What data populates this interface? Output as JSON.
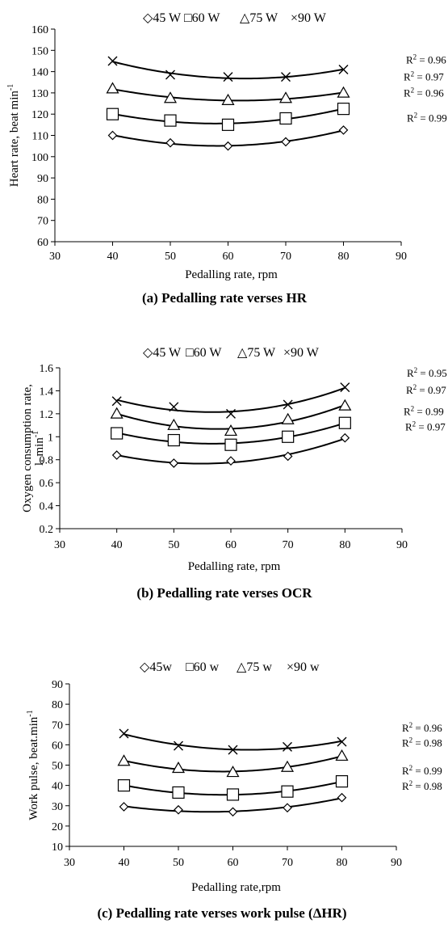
{
  "chart_data": [
    {
      "type": "scatter",
      "caption": "(a) Pedalling rate verses HR",
      "xlabel": "Pedalling rate, rpm",
      "ylabel": "Heart rate, beat min",
      "ylabel_sup": "-1",
      "xlim": [
        30,
        90
      ],
      "xticks": [
        30,
        40,
        50,
        60,
        70,
        80,
        90
      ],
      "ylim": [
        60,
        160
      ],
      "yticks": [
        60,
        70,
        80,
        90,
        100,
        110,
        120,
        130,
        140,
        150,
        160
      ],
      "legend": [
        "45 W",
        "60 W",
        "75 W",
        "90 W"
      ],
      "legend_position": "top",
      "x": [
        40,
        50,
        60,
        70,
        80
      ],
      "series": [
        {
          "name": "45 W",
          "marker": "diamond",
          "values": [
            110,
            106.5,
            105,
            107,
            112.5
          ],
          "r2": "0.99"
        },
        {
          "name": "60 W",
          "marker": "square",
          "values": [
            120,
            117,
            115,
            118,
            122.5
          ],
          "r2": "0.96"
        },
        {
          "name": "75 W",
          "marker": "triangle",
          "values": [
            132,
            127.5,
            126.5,
            127.5,
            130
          ],
          "r2": "0.97"
        },
        {
          "name": "90 W",
          "marker": "cross",
          "values": [
            145,
            138.5,
            137.5,
            137.5,
            141
          ],
          "r2": "0.96"
        }
      ]
    },
    {
      "type": "scatter",
      "caption": "(b) Pedalling rate verses OCR",
      "xlabel": "Pedalling rate, rpm",
      "ylabel": "Oxygen consumption rate,",
      "ylabel2": "l. min",
      "ylabel_sup": "-1",
      "xlim": [
        30,
        90
      ],
      "xticks": [
        30,
        40,
        50,
        60,
        70,
        80,
        90
      ],
      "ylim": [
        0.2,
        1.6
      ],
      "yticks": [
        0.2,
        0.4,
        0.6,
        0.8,
        1,
        1.2,
        1.4,
        1.6
      ],
      "legend": [
        "45 W",
        "60 W",
        "75 W",
        "90 W"
      ],
      "legend_position": "top",
      "x": [
        40,
        50,
        60,
        70,
        80
      ],
      "series": [
        {
          "name": "45 W",
          "marker": "diamond",
          "values": [
            0.84,
            0.77,
            0.79,
            0.83,
            0.99
          ],
          "r2": "0.97"
        },
        {
          "name": "60 W",
          "marker": "square",
          "values": [
            1.03,
            0.97,
            0.93,
            1.0,
            1.12
          ],
          "r2": "0.99"
        },
        {
          "name": "75 W",
          "marker": "triangle",
          "values": [
            1.2,
            1.1,
            1.05,
            1.15,
            1.27
          ],
          "r2": "0.97"
        },
        {
          "name": "90 W",
          "marker": "cross",
          "values": [
            1.31,
            1.26,
            1.2,
            1.28,
            1.43
          ],
          "r2": "0.95"
        }
      ]
    },
    {
      "type": "scatter",
      "caption": "(c) Pedalling rate verses work pulse (ΔHR)",
      "xlabel": "Pedalling rate,rpm",
      "ylabel": "Work pulse, beat.min",
      "ylabel_sup": "-1",
      "xlim": [
        30,
        90
      ],
      "xticks": [
        30,
        40,
        50,
        60,
        70,
        80,
        90
      ],
      "ylim": [
        10,
        90
      ],
      "yticks": [
        10,
        20,
        30,
        40,
        50,
        60,
        70,
        80,
        90
      ],
      "legend": [
        "45w",
        "60 w",
        "75 w",
        "90 w"
      ],
      "legend_position": "top",
      "x": [
        40,
        50,
        60,
        70,
        80
      ],
      "series": [
        {
          "name": "45w",
          "marker": "diamond",
          "values": [
            29.5,
            28,
            27,
            29,
            34
          ],
          "r2": "0.98"
        },
        {
          "name": "60 w",
          "marker": "square",
          "values": [
            40,
            36.5,
            35.5,
            37,
            42
          ],
          "r2": "0.99"
        },
        {
          "name": "75 w",
          "marker": "triangle",
          "values": [
            52,
            48.5,
            46.5,
            49,
            54.5
          ],
          "r2": "0.98"
        },
        {
          "name": "90 w",
          "marker": "cross",
          "values": [
            65.5,
            59.5,
            57.5,
            59,
            61.5
          ],
          "r2": "0.96"
        }
      ]
    }
  ]
}
